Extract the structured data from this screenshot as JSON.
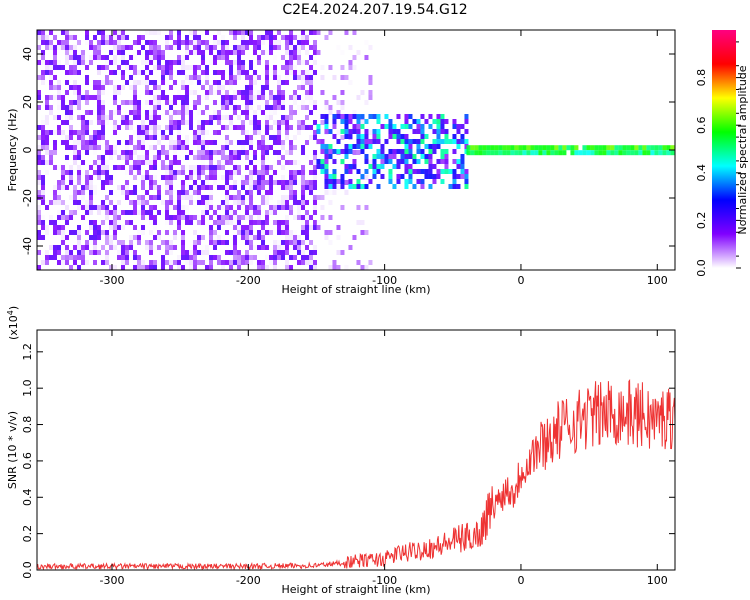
{
  "title": "C2E4.2024.207.19.54.G12",
  "chart_data": [
    {
      "type": "heatmap",
      "title": "",
      "xlabel": "Height of straight line (km)",
      "ylabel": "Frequency (Hz)",
      "xlim": [
        -355,
        113
      ],
      "ylim": [
        -50,
        50
      ],
      "xticks": [
        -300,
        -200,
        -100,
        0,
        100
      ],
      "xtick_labels": [
        "-300",
        "-200",
        "-100",
        "0",
        "100"
      ],
      "yticks": [
        -40,
        -20,
        0,
        20,
        40
      ],
      "ytick_labels": [
        "-40",
        "-20",
        "0",
        "20",
        "40"
      ],
      "grid": false,
      "colorbar": {
        "label": "Normalized spectral amplitude",
        "range": [
          0,
          1
        ],
        "ticks": [
          0.0,
          0.2,
          0.4,
          0.6,
          0.8
        ],
        "tick_labels": [
          "0.0",
          "0.2",
          "0.4",
          "0.6",
          "0.8"
        ],
        "colors": [
          "#ffffff",
          "#8000ff",
          "#0000ff",
          "#00ffff",
          "#00ff00",
          "#ffff00",
          "#ff0000",
          "#ff0080"
        ]
      },
      "regions": [
        {
          "x_range": [
            -355,
            -150
          ],
          "y_range": [
            -50,
            50
          ],
          "pattern": "dense noise",
          "amplitude": [
            0.0,
            0.2
          ]
        },
        {
          "x_range": [
            -150,
            -110
          ],
          "y_range": [
            -50,
            50
          ],
          "pattern": "sparse noise",
          "amplitude": [
            0.0,
            0.1
          ]
        },
        {
          "x_range": [
            -150,
            -40
          ],
          "y_range": [
            -15,
            15
          ],
          "pattern": "spread signal",
          "amplitude": [
            0.1,
            0.5
          ]
        },
        {
          "x_range": [
            -40,
            113
          ],
          "y_range": [
            -2,
            2
          ],
          "pattern": "coherent signal",
          "amplitude": [
            0.6,
            0.9
          ]
        }
      ]
    },
    {
      "type": "line",
      "title": "",
      "xlabel": "Height of straight line (km)",
      "ylabel": "SNR (10 * v/v)",
      "y_scale_label": "(x10",
      "y_scale_exp": "4",
      "y_scale_close": ")",
      "xlim": [
        -355,
        113
      ],
      "ylim": [
        0,
        1.32
      ],
      "xticks": [
        -300,
        -200,
        -100,
        0,
        100
      ],
      "xtick_labels": [
        "-300",
        "-200",
        "-100",
        "0",
        "100"
      ],
      "yticks": [
        0.0,
        0.2,
        0.4,
        0.6,
        0.8,
        1.0,
        1.2
      ],
      "ytick_labels": [
        "0.0",
        "0.2",
        "0.4",
        "0.6",
        "0.8",
        "1.0",
        "1.2"
      ],
      "grid": false,
      "series_color": "#ee3333",
      "x": [
        -355,
        -300,
        -250,
        -200,
        -150,
        -130,
        -120,
        -100,
        -90,
        -80,
        -70,
        -60,
        -50,
        -40,
        -30,
        -25,
        -20,
        -15,
        -10,
        -5,
        0,
        10,
        20,
        30,
        40,
        50,
        60,
        70,
        80,
        90,
        100,
        110
      ],
      "y": [
        0.02,
        0.02,
        0.02,
        0.02,
        0.025,
        0.04,
        0.05,
        0.06,
        0.09,
        0.1,
        0.12,
        0.13,
        0.16,
        0.18,
        0.2,
        0.3,
        0.35,
        0.4,
        0.45,
        0.42,
        0.55,
        0.65,
        0.72,
        0.78,
        0.82,
        0.85,
        0.86,
        0.87,
        0.86,
        0.85,
        0.82,
        0.85
      ]
    }
  ]
}
